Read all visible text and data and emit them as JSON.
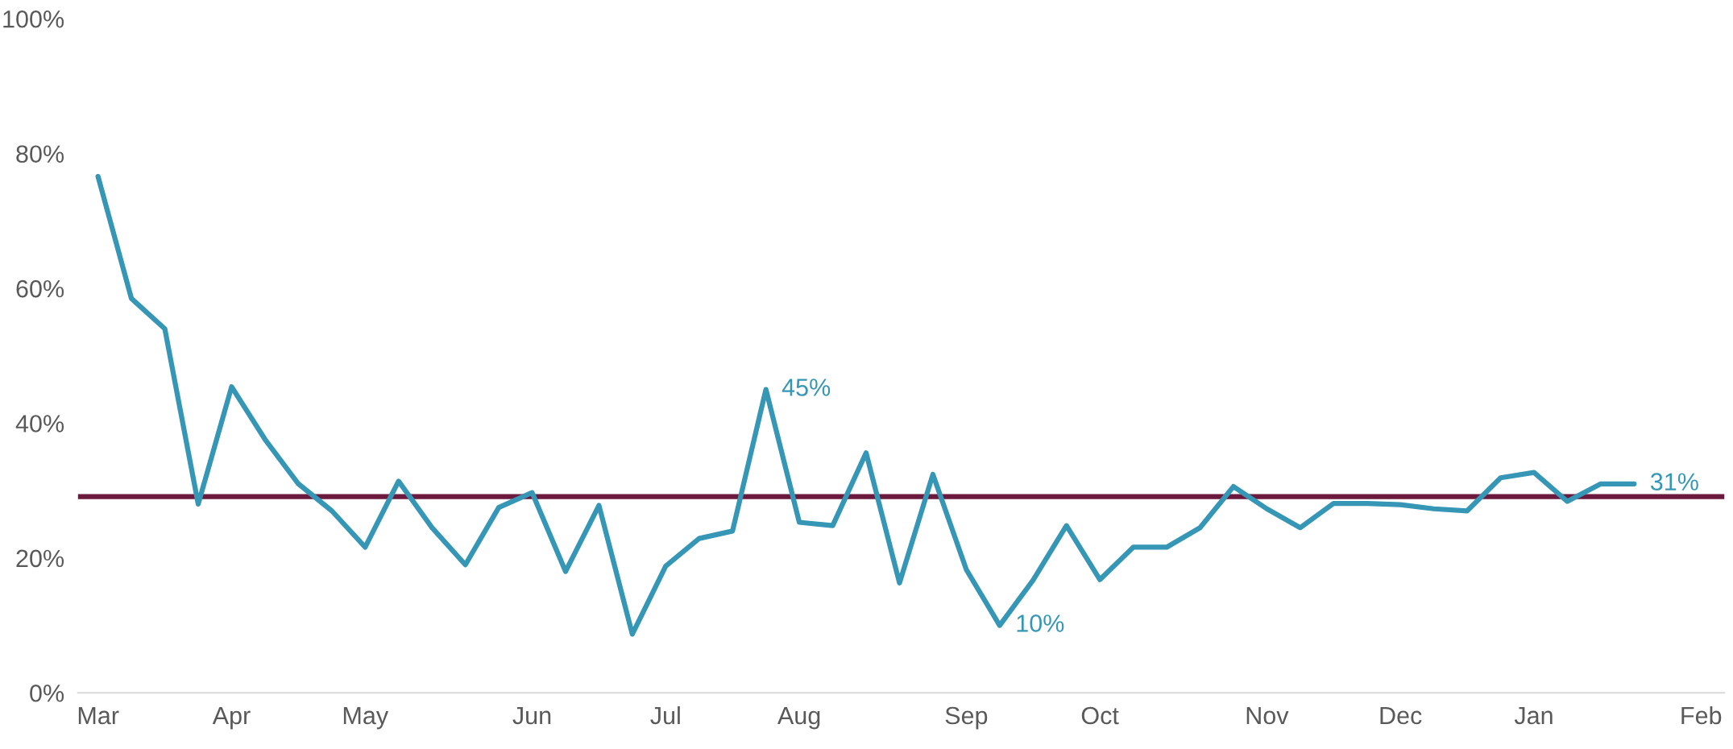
{
  "chart_data": {
    "type": "line",
    "categories": [
      "Mar",
      null,
      null,
      null,
      "Apr",
      null,
      null,
      null,
      "May",
      null,
      null,
      null,
      null,
      "Jun",
      null,
      null,
      null,
      "Jul",
      null,
      null,
      null,
      "Aug",
      null,
      null,
      null,
      null,
      "Sep",
      null,
      null,
      null,
      "Oct",
      null,
      null,
      null,
      null,
      "Nov",
      null,
      null,
      null,
      "Dec",
      null,
      null,
      null,
      "Jan",
      null,
      null,
      null,
      null,
      "Feb"
    ],
    "series": [
      {
        "color": "#3596b5",
        "values": [
          76.6,
          58.5,
          54,
          28,
          45.4,
          37.6,
          31,
          27,
          21.6,
          31.4,
          24.5,
          19,
          27.5,
          29.7,
          18,
          27.8,
          8.7,
          18.8,
          22.9,
          24,
          45,
          25.3,
          24.8,
          35.6,
          16.3,
          32.4,
          18.3,
          10,
          16.7,
          24.8,
          16.8,
          21.6,
          21.6,
          24.5,
          30.6,
          27.3,
          24.5,
          28.1,
          28.1,
          27.9,
          27.3,
          27,
          31.9,
          32.7,
          28.4,
          31,
          31,
          null,
          null
        ],
        "value_labels": [
          null,
          null,
          null,
          null,
          null,
          null,
          null,
          null,
          null,
          null,
          null,
          null,
          null,
          null,
          null,
          null,
          null,
          null,
          null,
          null,
          "45%",
          null,
          null,
          null,
          null,
          null,
          null,
          "10%",
          null,
          null,
          null,
          null,
          null,
          null,
          null,
          null,
          null,
          null,
          null,
          null,
          null,
          null,
          null,
          null,
          null,
          null,
          "31%",
          null,
          null
        ]
      }
    ],
    "ylim": [
      0,
      100
    ],
    "yticks": [
      {
        "value": 0,
        "label": "0%"
      },
      {
        "value": 20,
        "label": "20%"
      },
      {
        "value": 40,
        "label": "40%"
      },
      {
        "value": 60,
        "label": "60%"
      },
      {
        "value": 80,
        "label": "80%"
      },
      {
        "value": 100,
        "label": "100%"
      }
    ],
    "ref_lines": [
      {
        "axis": "y",
        "value": 29.1,
        "color": "#6b1a3e"
      }
    ],
    "grid": false,
    "line_style": "solid"
  }
}
